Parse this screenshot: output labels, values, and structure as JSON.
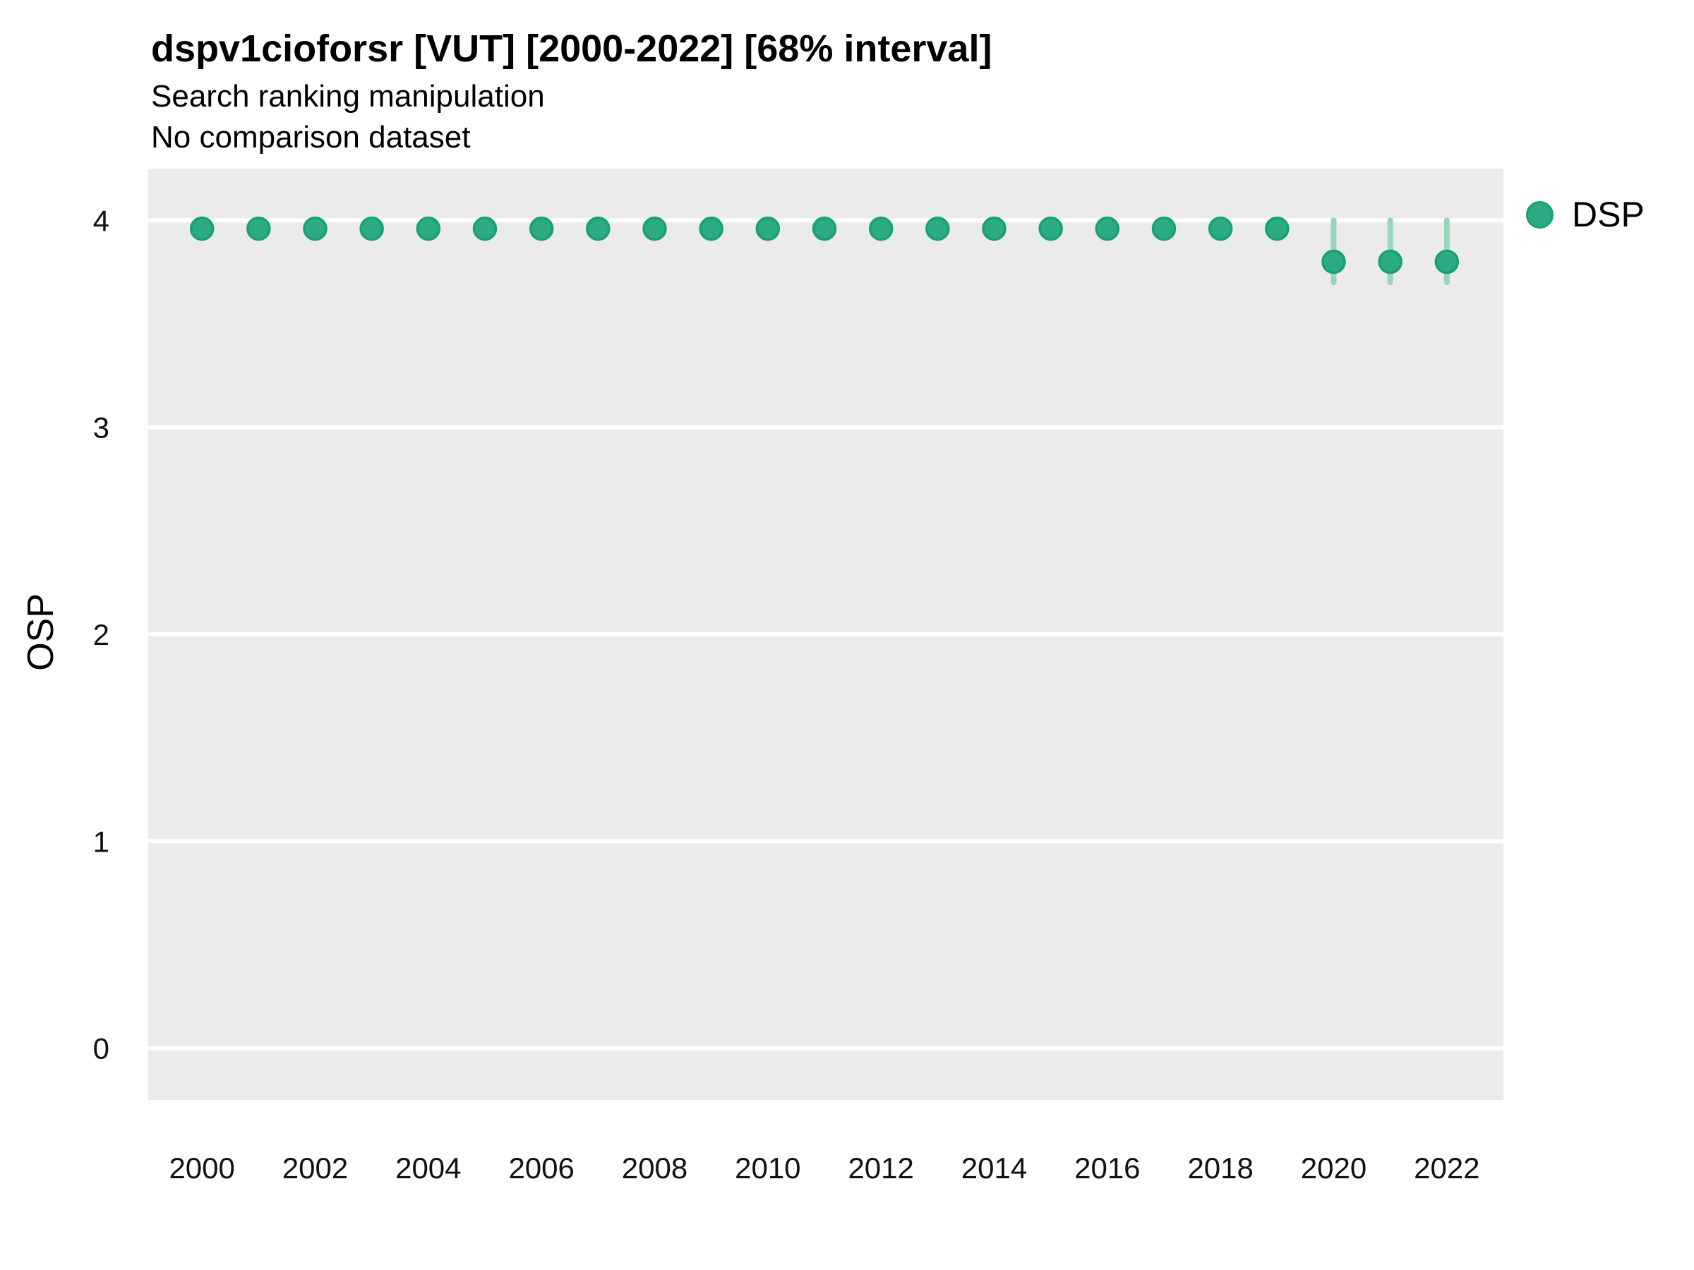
{
  "chart_data": {
    "type": "scatter",
    "title": "dspv1cioforsr [VUT] [2000-2022] [68% interval]",
    "subtitle": "Search ranking manipulation",
    "note": "No comparison dataset",
    "xlabel": "",
    "ylabel": "OSP",
    "x": [
      2000,
      2001,
      2002,
      2003,
      2004,
      2005,
      2006,
      2007,
      2008,
      2009,
      2010,
      2011,
      2012,
      2013,
      2014,
      2015,
      2016,
      2017,
      2018,
      2019,
      2020,
      2021,
      2022
    ],
    "series": [
      {
        "name": "DSP",
        "values": [
          3.96,
          3.96,
          3.96,
          3.96,
          3.96,
          3.96,
          3.96,
          3.96,
          3.96,
          3.96,
          3.96,
          3.96,
          3.96,
          3.96,
          3.96,
          3.96,
          3.96,
          3.96,
          3.96,
          3.96,
          3.8,
          3.8,
          3.8
        ],
        "interval_low": [
          3.96,
          3.96,
          3.96,
          3.96,
          3.96,
          3.96,
          3.96,
          3.96,
          3.96,
          3.96,
          3.96,
          3.96,
          3.96,
          3.96,
          3.96,
          3.96,
          3.96,
          3.96,
          3.96,
          3.96,
          3.7,
          3.7,
          3.7
        ],
        "interval_high": [
          3.96,
          3.96,
          3.96,
          3.96,
          3.96,
          3.96,
          3.96,
          3.96,
          3.96,
          3.96,
          3.96,
          3.96,
          3.96,
          3.96,
          3.96,
          3.96,
          3.96,
          3.96,
          3.96,
          3.96,
          4.0,
          4.0,
          4.0
        ],
        "interval_level": "68%"
      }
    ],
    "xticks": [
      2000,
      2002,
      2004,
      2006,
      2008,
      2010,
      2012,
      2014,
      2016,
      2018,
      2020,
      2022
    ],
    "yticks": [
      0,
      1,
      2,
      3,
      4
    ],
    "xlim": [
      1999.05,
      2023.0
    ],
    "ylim": [
      -0.25,
      4.25
    ],
    "grid": "horizontal-major-only",
    "legend_position": "right-top-outside",
    "style": {
      "figure_bg": "#ffffff",
      "plot_bg": "#ebebeb",
      "grid_color": "#ffffff",
      "marker_color": "#2baa84",
      "marker_edge_color": "#17a173",
      "errorbar_color": "#98d5bb",
      "tick_text_color": "#111111"
    }
  }
}
